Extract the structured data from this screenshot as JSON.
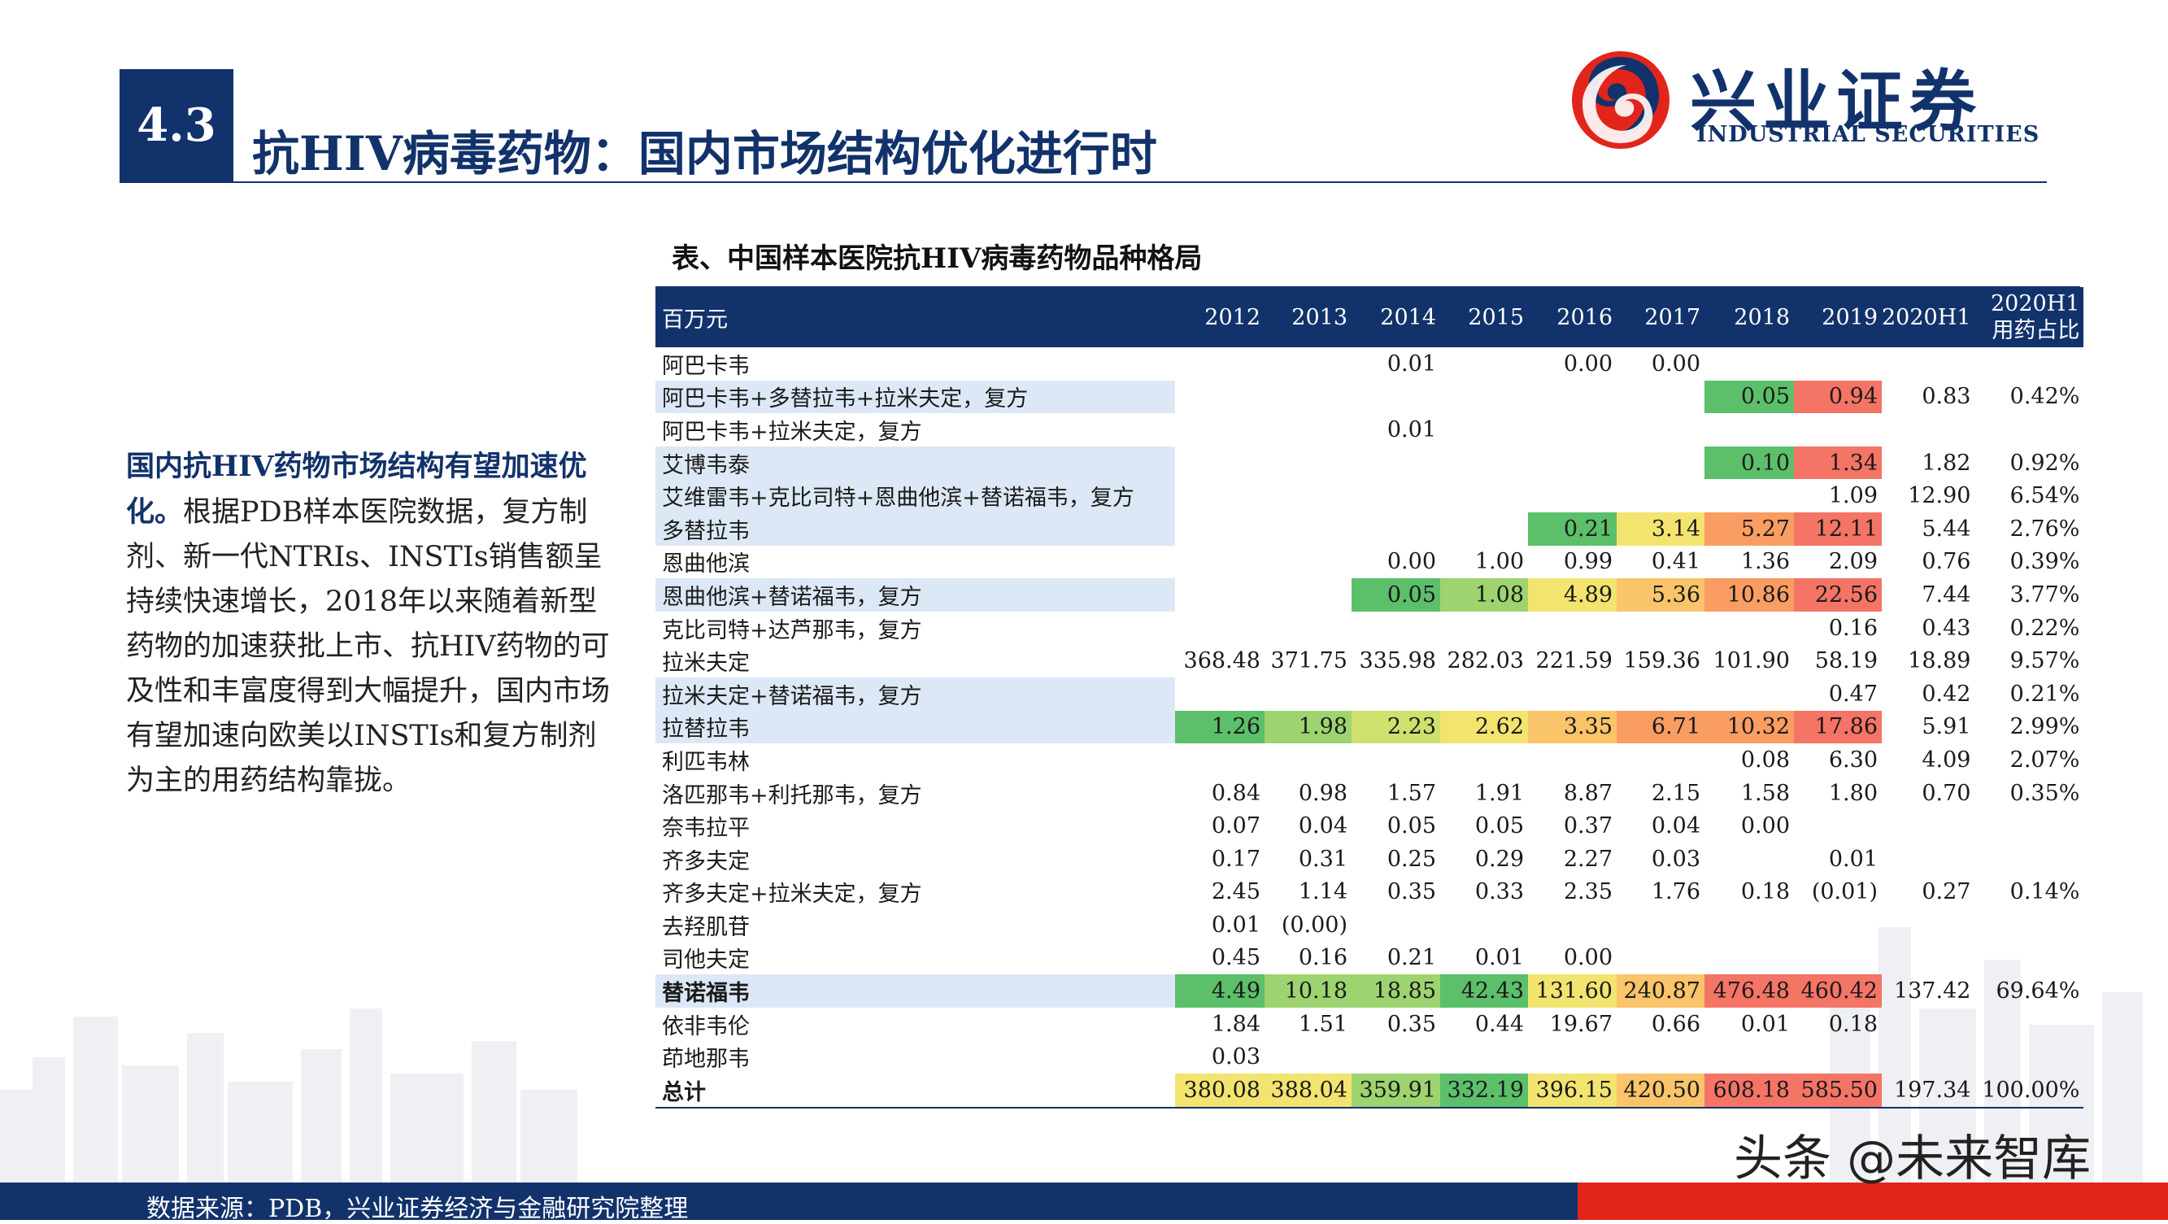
{
  "header": {
    "section": "4.3",
    "title": "抗HIV病毒药物：国内市场结构优化进行时",
    "logo_cn": "兴业证券",
    "logo_en": "INDUSTRIAL SECURITIES"
  },
  "left_text": {
    "highlight": "国内抗HIV药物市场结构有望加速优化。",
    "body": "根据PDB样本医院数据，复方制剂、新一代NTRIs、INSTIs销售额呈持续快速增长，2018年以来随着新型药物的加速获批上市、抗HIV药物的可及性和丰富度得到大幅提升，国内市场有望加速向欧美以INSTIs和复方制剂为主的用药结构靠拢。"
  },
  "table": {
    "caption": "表、中国样本医院抗HIV病毒药物品种格局",
    "unit": "百万元",
    "years": [
      "2012",
      "2013",
      "2014",
      "2015",
      "2016",
      "2017",
      "2018",
      "2019"
    ],
    "h1_label": "2020H1",
    "share_label_1": "2020H1",
    "share_label_2": "用药占比",
    "rows": [
      {
        "name": "阿巴卡韦",
        "v": [
          "",
          "",
          "0.01",
          "",
          "0.00",
          "0.00",
          "",
          ""
        ],
        "h1": "",
        "share": ""
      },
      {
        "name": "阿巴卡韦+多替拉韦+拉米夫定，复方",
        "v": [
          "",
          "",
          "",
          "",
          "",
          "",
          "0.05",
          "0.94"
        ],
        "h1": "0.83",
        "share": "0.42%"
      },
      {
        "name": "阿巴卡韦+拉米夫定，复方",
        "v": [
          "",
          "",
          "0.01",
          "",
          "",
          "",
          "",
          ""
        ],
        "h1": "",
        "share": ""
      },
      {
        "name": "艾博韦泰",
        "v": [
          "",
          "",
          "",
          "",
          "",
          "",
          "0.10",
          "1.34"
        ],
        "h1": "1.82",
        "share": "0.92%"
      },
      {
        "name": "艾维雷韦+克比司特+恩曲他滨+替诺福韦，复方",
        "v": [
          "",
          "",
          "",
          "",
          "",
          "",
          "",
          "1.09"
        ],
        "h1": "12.90",
        "share": "6.54%"
      },
      {
        "name": "多替拉韦",
        "v": [
          "",
          "",
          "",
          "",
          "0.21",
          "3.14",
          "5.27",
          "12.11"
        ],
        "h1": "5.44",
        "share": "2.76%"
      },
      {
        "name": "恩曲他滨",
        "v": [
          "",
          "",
          "0.00",
          "1.00",
          "0.99",
          "0.41",
          "1.36",
          "2.09"
        ],
        "h1": "0.76",
        "share": "0.39%"
      },
      {
        "name": "恩曲他滨+替诺福韦，复方",
        "v": [
          "",
          "",
          "0.05",
          "1.08",
          "4.89",
          "5.36",
          "10.86",
          "22.56"
        ],
        "h1": "7.44",
        "share": "3.77%"
      },
      {
        "name": "克比司特+达芦那韦，复方",
        "v": [
          "",
          "",
          "",
          "",
          "",
          "",
          "",
          "0.16"
        ],
        "h1": "0.43",
        "share": "0.22%"
      },
      {
        "name": "拉米夫定",
        "v": [
          "368.48",
          "371.75",
          "335.98",
          "282.03",
          "221.59",
          "159.36",
          "101.90",
          "58.19"
        ],
        "h1": "18.89",
        "share": "9.57%"
      },
      {
        "name": "拉米夫定+替诺福韦，复方",
        "v": [
          "",
          "",
          "",
          "",
          "",
          "",
          "",
          "0.47"
        ],
        "h1": "0.42",
        "share": "0.21%"
      },
      {
        "name": "拉替拉韦",
        "v": [
          "1.26",
          "1.98",
          "2.23",
          "2.62",
          "3.35",
          "6.71",
          "10.32",
          "17.86"
        ],
        "h1": "5.91",
        "share": "2.99%"
      },
      {
        "name": "利匹韦林",
        "v": [
          "",
          "",
          "",
          "",
          "",
          "",
          "0.08",
          "6.30"
        ],
        "h1": "4.09",
        "share": "2.07%"
      },
      {
        "name": "洛匹那韦+利托那韦，复方",
        "v": [
          "0.84",
          "0.98",
          "1.57",
          "1.91",
          "8.87",
          "2.15",
          "1.58",
          "1.80"
        ],
        "h1": "0.70",
        "share": "0.35%"
      },
      {
        "name": "奈韦拉平",
        "v": [
          "0.07",
          "0.04",
          "0.05",
          "0.05",
          "0.37",
          "0.04",
          "0.00",
          ""
        ],
        "h1": "",
        "share": ""
      },
      {
        "name": "齐多夫定",
        "v": [
          "0.17",
          "0.31",
          "0.25",
          "0.29",
          "2.27",
          "0.03",
          "",
          "0.01"
        ],
        "h1": "",
        "share": ""
      },
      {
        "name": "齐多夫定+拉米夫定，复方",
        "v": [
          "2.45",
          "1.14",
          "0.35",
          "0.33",
          "2.35",
          "1.76",
          "0.18",
          "(0.01)"
        ],
        "h1": "0.27",
        "share": "0.14%"
      },
      {
        "name": "去羟肌苷",
        "v": [
          "0.01",
          "(0.00)",
          "",
          "",
          "",
          "",
          "",
          ""
        ],
        "h1": "",
        "share": ""
      },
      {
        "name": "司他夫定",
        "v": [
          "0.45",
          "0.16",
          "0.21",
          "0.01",
          "0.00",
          "",
          "",
          ""
        ],
        "h1": "",
        "share": ""
      },
      {
        "name": "替诺福韦",
        "v": [
          "4.49",
          "10.18",
          "18.85",
          "42.43",
          "131.60",
          "240.87",
          "476.48",
          "460.42"
        ],
        "h1": "137.42",
        "share": "69.64%"
      },
      {
        "name": "依非韦伦",
        "v": [
          "1.84",
          "1.51",
          "0.35",
          "0.44",
          "19.67",
          "0.66",
          "0.01",
          "0.18"
        ],
        "h1": "",
        "share": ""
      },
      {
        "name": "茚地那韦",
        "v": [
          "0.03",
          "",
          "",
          "",
          "",
          "",
          "",
          ""
        ],
        "h1": "",
        "share": ""
      },
      {
        "name": "总计",
        "v": [
          "380.08",
          "388.04",
          "359.91",
          "332.19",
          "396.15",
          "420.50",
          "608.18",
          "585.50"
        ],
        "h1": "197.34",
        "share": "100.00%"
      }
    ]
  },
  "heat_colors": [
    "#5cbf6a",
    "#9ed46f",
    "#cfe06f",
    "#f2e46e",
    "#f9c46a",
    "#f99d62",
    "#f47466"
  ],
  "footer": {
    "source": "数据来源：PDB，兴业证券经济与金融研究院整理",
    "watermark": "头条 @未来智库"
  }
}
